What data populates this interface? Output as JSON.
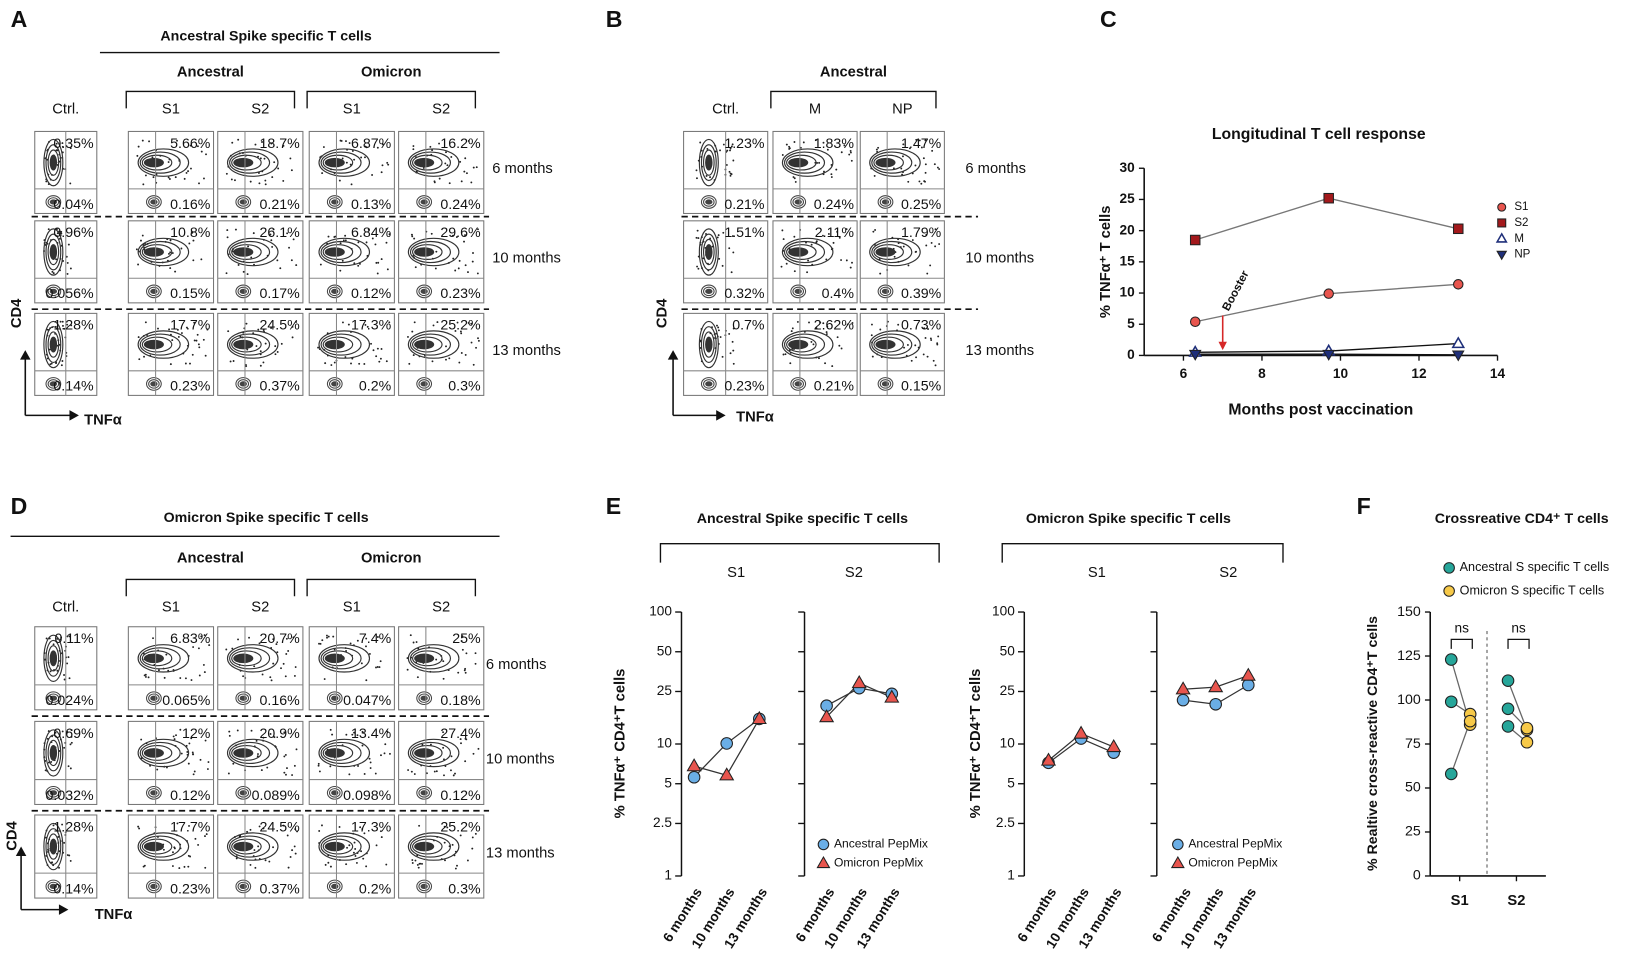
{
  "panel_labels": [
    "A",
    "B",
    "C",
    "D",
    "E",
    "F"
  ],
  "flow_panels": [
    {
      "title": "Ancestral Spike specific T cells",
      "control": "Ctrl.",
      "groups": [
        {
          "name": "Ancestral",
          "columns": [
            "S1",
            "S2"
          ]
        },
        {
          "name": "Omicron",
          "columns": [
            "S1",
            "S2"
          ]
        }
      ],
      "y_axis": "CD4",
      "x_axis": "TNFα",
      "rows": [
        {
          "label": "6 months",
          "cells": [
            {
              "top": "0.35%",
              "bottom": "0.04%"
            },
            {
              "top": "5.66%",
              "bottom": "0.16%"
            },
            {
              "top": "18.7%",
              "bottom": "0.21%"
            },
            {
              "top": "6.87%",
              "bottom": "0.13%"
            },
            {
              "top": "16.2%",
              "bottom": "0.24%"
            }
          ]
        },
        {
          "label": "10 months",
          "cells": [
            {
              "top": "0.96%",
              "bottom": "0.056%"
            },
            {
              "top": "10.8%",
              "bottom": "0.15%"
            },
            {
              "top": "26.1%",
              "bottom": "0.17%"
            },
            {
              "top": "6.84%",
              "bottom": "0.12%"
            },
            {
              "top": "29.6%",
              "bottom": "0.23%"
            }
          ]
        },
        {
          "label": "13 months",
          "cells": [
            {
              "top": "1.28%",
              "bottom": "0.14%"
            },
            {
              "top": "17.7%",
              "bottom": "0.23%"
            },
            {
              "top": "24.5%",
              "bottom": "0.37%"
            },
            {
              "top": "17.3%",
              "bottom": "0.2%"
            },
            {
              "top": "25.2%",
              "bottom": "0.3%"
            }
          ]
        }
      ]
    },
    {
      "control": "Ctrl.",
      "groups": [
        {
          "name": "Ancestral",
          "columns": [
            "M",
            "NP"
          ]
        }
      ],
      "y_axis": "CD4",
      "x_axis": "TNFα",
      "rows": [
        {
          "label": "6 months",
          "cells": [
            {
              "top": "1.23%",
              "bottom": "0.21%"
            },
            {
              "top": "1.83%",
              "bottom": "0.24%"
            },
            {
              "top": "1.47%",
              "bottom": "0.25%"
            }
          ]
        },
        {
          "label": "10 months",
          "cells": [
            {
              "top": "1.51%",
              "bottom": "0.32%"
            },
            {
              "top": "2.11%",
              "bottom": "0.4%"
            },
            {
              "top": "1.79%",
              "bottom": "0.39%"
            }
          ]
        },
        {
          "label": "13 months",
          "cells": [
            {
              "top": "0.7%",
              "bottom": "0.23%"
            },
            {
              "top": "2.62%",
              "bottom": "0.21%"
            },
            {
              "top": "0.73%",
              "bottom": "0.15%"
            }
          ]
        }
      ]
    },
    {
      "title": "Omicron Spike specific T cells",
      "control": "Ctrl.",
      "groups": [
        {
          "name": "Ancestral",
          "columns": [
            "S1",
            "S2"
          ]
        },
        {
          "name": "Omicron",
          "columns": [
            "S1",
            "S2"
          ]
        }
      ],
      "y_axis": "CD4",
      "x_axis": "TNFα",
      "rows": [
        {
          "label": "6 months",
          "cells": [
            {
              "top": "0.11%",
              "bottom": "0.024%"
            },
            {
              "top": "6.83%",
              "bottom": "0.065%"
            },
            {
              "top": "20.7%",
              "bottom": "0.16%"
            },
            {
              "top": "7.4%",
              "bottom": "0.047%"
            },
            {
              "top": "25%",
              "bottom": "0.18%"
            }
          ]
        },
        {
          "label": "10 months",
          "cells": [
            {
              "top": "0.69%",
              "bottom": "0.032%"
            },
            {
              "top": "12%",
              "bottom": "0.12%"
            },
            {
              "top": "20.9%",
              "bottom": "0.089%"
            },
            {
              "top": "13.4%",
              "bottom": "0.098%"
            },
            {
              "top": "27.4%",
              "bottom": "0.12%"
            }
          ]
        },
        {
          "label": "13 months",
          "cells": [
            {
              "top": "1.28%",
              "bottom": "0.14%"
            },
            {
              "top": "17.7%",
              "bottom": "0.23%"
            },
            {
              "top": "24.5%",
              "bottom": "0.37%"
            },
            {
              "top": "17.3%",
              "bottom": "0.2%"
            },
            {
              "top": "25.2%",
              "bottom": "0.3%"
            }
          ]
        }
      ]
    }
  ],
  "chart_data": [
    {
      "type": "line",
      "title": "Longitudinal T cell response",
      "xlabel": "Months post vaccination",
      "ylabel": "% TNFα⁺ T cells",
      "x": [
        6.3,
        9.7,
        13
      ],
      "xlim": [
        5,
        14
      ],
      "xticks": [
        6,
        8,
        10,
        12,
        14
      ],
      "ylim": [
        0,
        30
      ],
      "yticks": [
        0,
        5,
        10,
        15,
        20,
        25,
        30
      ],
      "legend": "right",
      "annotations": [
        {
          "text": "Booster",
          "x": 7
        }
      ],
      "series": [
        {
          "name": "S1",
          "color": "#e8554e",
          "marker": "circle",
          "values": [
            5.4,
            9.9,
            11.4
          ]
        },
        {
          "name": "S2",
          "color": "#a3191c",
          "marker": "square",
          "values": [
            18.5,
            25.2,
            20.3
          ]
        },
        {
          "name": "M",
          "color": "#1f2f7a",
          "marker": "triangle-open",
          "values": [
            0.5,
            0.7,
            1.9
          ]
        },
        {
          "name": "NP",
          "color": "#1f2f7a",
          "marker": "triangle-down",
          "values": [
            0.2,
            0.2,
            0.1
          ]
        }
      ]
    },
    {
      "type": "line",
      "title": "Ancestral Spike specific T cells",
      "ylabel": "% TNFα⁺ CD4⁺T cells",
      "yscale": "log",
      "ylim": [
        1,
        100
      ],
      "yticks": [
        1,
        2.5,
        5,
        10,
        25,
        50,
        100
      ],
      "subplots": [
        "S1",
        "S2"
      ],
      "categories": [
        "6 months",
        "10 months",
        "13 months"
      ],
      "series": [
        {
          "name": "Ancestral PepMix",
          "color": "#6aaee6",
          "marker": "circle",
          "values": [
            [
              5.6,
              10.1,
              15.5
            ],
            [
              19.5,
              26.5,
              24
            ]
          ]
        },
        {
          "name": "Omicron PepMix",
          "color": "#e8554e",
          "marker": "triangle",
          "values": [
            [
              6.8,
              5.8,
              15.5
            ],
            [
              16,
              29,
              22.5
            ]
          ]
        }
      ]
    },
    {
      "type": "line",
      "title": "Omicron Spike specific T cells",
      "ylabel": "% TNFα⁺ CD4⁺T cells",
      "yscale": "log",
      "ylim": [
        1,
        100
      ],
      "yticks": [
        1,
        2.5,
        5,
        10,
        25,
        50,
        100
      ],
      "subplots": [
        "S1",
        "S2"
      ],
      "categories": [
        "6 months",
        "10 months",
        "13 months"
      ],
      "series": [
        {
          "name": "Ancestral PepMix",
          "color": "#6aaee6",
          "marker": "circle",
          "values": [
            [
              7.2,
              11,
              8.6
            ],
            [
              21.5,
              20,
              28
            ]
          ]
        },
        {
          "name": "Omicron PepMix",
          "color": "#e8554e",
          "marker": "triangle",
          "values": [
            [
              7.5,
              12,
              9.5
            ],
            [
              26,
              27,
              33
            ]
          ]
        }
      ]
    },
    {
      "type": "dot",
      "title": "Crossreative CD4⁺ T cells",
      "ylabel": "% Realtive cross-reactive CD4⁺T cells",
      "categories": [
        "S1",
        "S2"
      ],
      "ylim": [
        0,
        150
      ],
      "yticks": [
        0,
        25,
        50,
        75,
        100,
        125,
        150
      ],
      "annotations": [
        "ns",
        "ns"
      ],
      "series": [
        {
          "name": "Ancestral S specific T cells",
          "color": "#26a69a",
          "values": [
            [
              123,
              99,
              58
            ],
            [
              111,
              95,
              85
            ]
          ]
        },
        {
          "name": "Omicron S specific T cells",
          "color": "#f7c948",
          "values": [
            [
              86,
              92,
              88
            ],
            [
              83,
              84,
              76
            ]
          ]
        }
      ]
    }
  ]
}
